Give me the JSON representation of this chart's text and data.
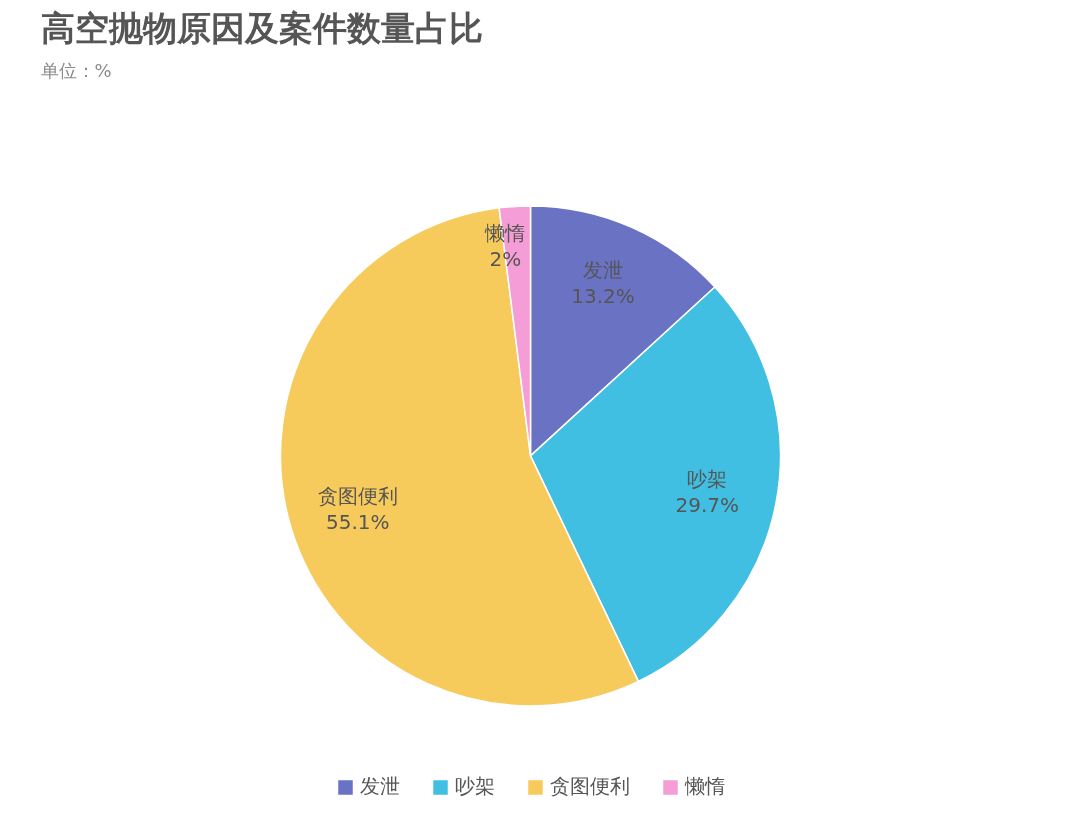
{
  "chart_data": {
    "type": "pie",
    "title": "高空抛物原因及案件数量占比",
    "subtitle": "单位：%",
    "categories": [
      "发泄",
      "吵架",
      "贪图便利",
      "懒惰"
    ],
    "values": [
      13.2,
      29.7,
      55.1,
      2
    ],
    "value_labels": [
      "13.2%",
      "29.7%",
      "55.1%",
      "2%"
    ],
    "colors": [
      "#6a72c4",
      "#40bfe3",
      "#f7ca5c",
      "#f59dd6"
    ],
    "legend": "bottom"
  }
}
